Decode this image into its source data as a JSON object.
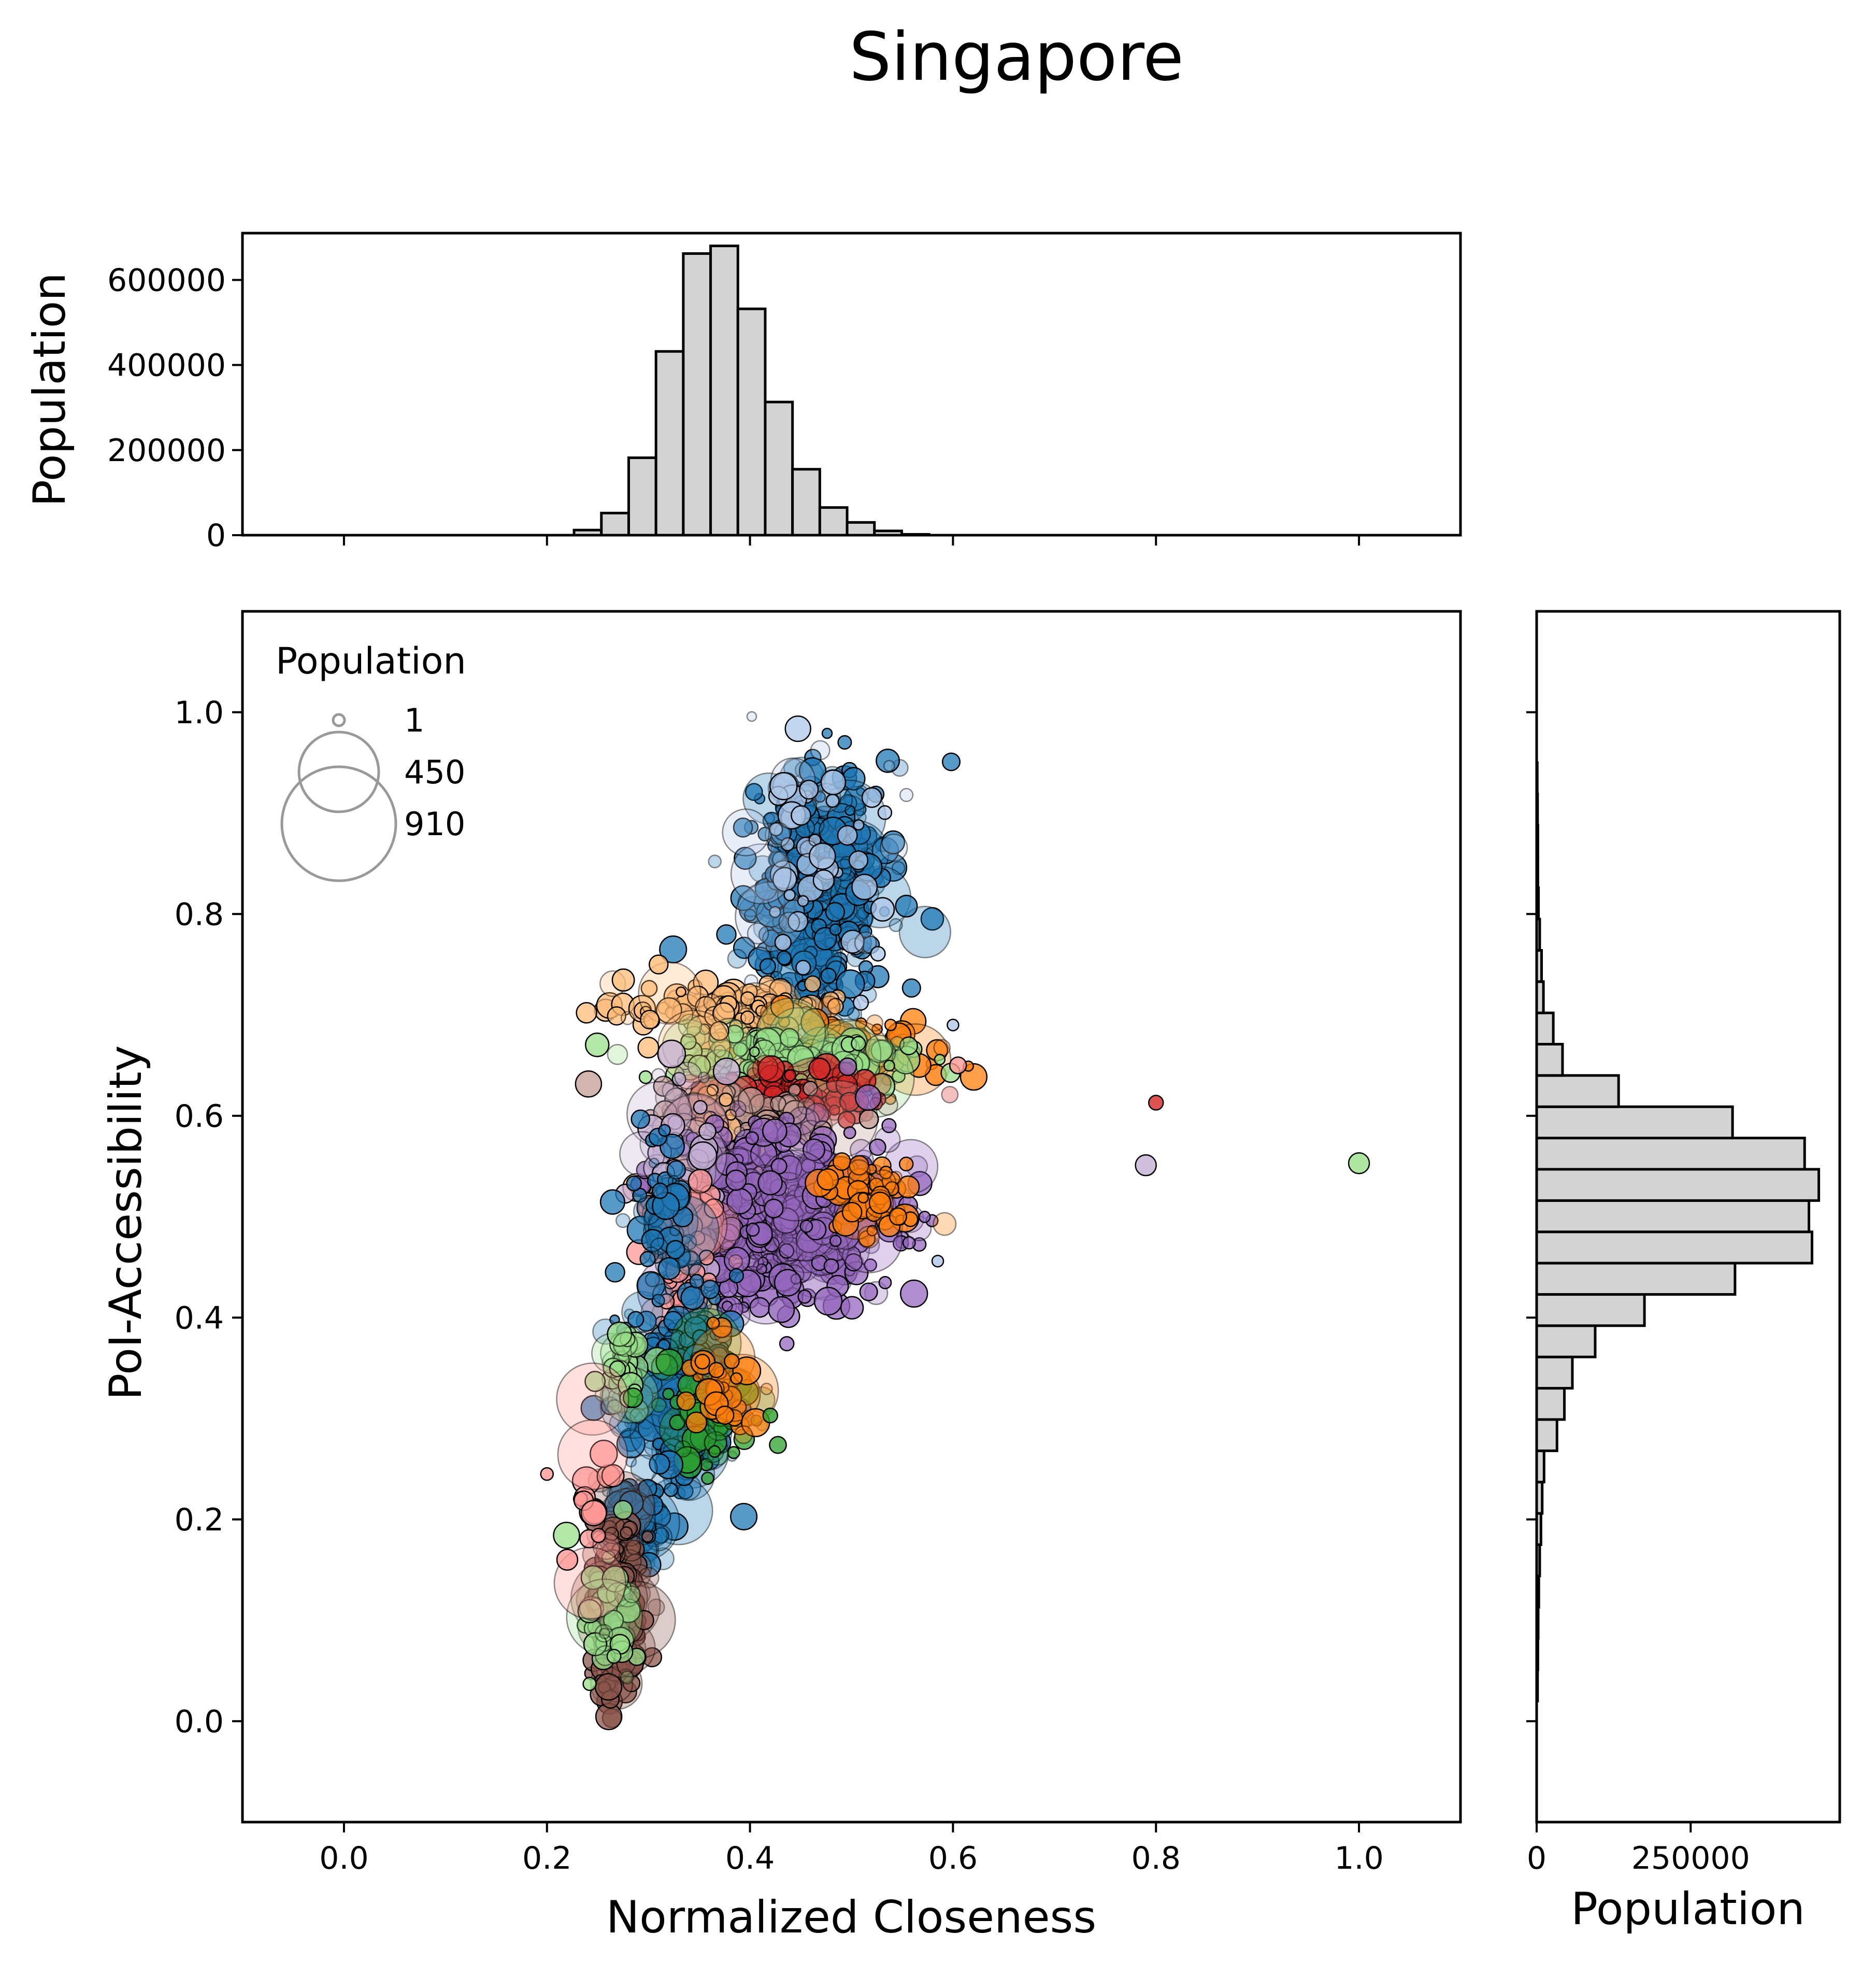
{
  "figure": {
    "title": "Singapore"
  },
  "chart_data": [
    {
      "type": "scatter",
      "name": "main",
      "xlabel": "Normalized Closeness",
      "ylabel": "PoI-Accessibility",
      "xlim": [
        -0.1,
        1.1
      ],
      "ylim": [
        -0.1,
        1.1
      ],
      "xticks": [
        0.0,
        0.2,
        0.4,
        0.6,
        0.8,
        1.0
      ],
      "xtick_labels": [
        "0.0",
        "0.2",
        "0.4",
        "0.6",
        "0.8",
        "1.0"
      ],
      "yticks": [
        0.0,
        0.2,
        0.4,
        0.6,
        0.8,
        1.0
      ],
      "ytick_labels": [
        "0.0",
        "0.2",
        "0.4",
        "0.6",
        "0.8",
        "1.0"
      ],
      "size_legend": {
        "title": "Population",
        "entries": [
          {
            "label": "1",
            "value": 1
          },
          {
            "label": "450",
            "value": 450
          },
          {
            "label": "910",
            "value": 910
          }
        ],
        "placement": "top-left"
      },
      "colors": [
        "#1f77b4",
        "#aec7e8",
        "#ff7f0e",
        "#ffbb78",
        "#2ca02c",
        "#98df8a",
        "#d62728",
        "#ff9896",
        "#9467bd",
        "#c5b0d5",
        "#8c564b",
        "#c49c94"
      ],
      "clusters": [
        {
          "color": "#1f77b4",
          "cx": 0.465,
          "cy": 0.82,
          "sx": 0.035,
          "sy": 0.065,
          "n": 420
        },
        {
          "color": "#aec7e8",
          "cx": 0.46,
          "cy": 0.84,
          "sx": 0.04,
          "sy": 0.07,
          "n": 60
        },
        {
          "color": "#ffbb78",
          "cx": 0.38,
          "cy": 0.705,
          "sx": 0.05,
          "sy": 0.012,
          "n": 140
        },
        {
          "color": "#ff7f0e",
          "cx": 0.49,
          "cy": 0.66,
          "sx": 0.05,
          "sy": 0.02,
          "n": 120
        },
        {
          "color": "#98df8a",
          "cx": 0.43,
          "cy": 0.655,
          "sx": 0.06,
          "sy": 0.012,
          "n": 150
        },
        {
          "color": "#d62728",
          "cx": 0.44,
          "cy": 0.62,
          "sx": 0.05,
          "sy": 0.015,
          "n": 90
        },
        {
          "color": "#c49c94",
          "cx": 0.41,
          "cy": 0.6,
          "sx": 0.05,
          "sy": 0.015,
          "n": 90
        },
        {
          "color": "#ffbb78",
          "cx": 0.36,
          "cy": 0.52,
          "sx": 0.03,
          "sy": 0.06,
          "n": 90
        },
        {
          "color": "#9467bd",
          "cx": 0.43,
          "cy": 0.5,
          "sx": 0.055,
          "sy": 0.045,
          "n": 520
        },
        {
          "color": "#ff7f0e",
          "cx": 0.52,
          "cy": 0.52,
          "sx": 0.025,
          "sy": 0.02,
          "n": 60
        },
        {
          "color": "#c5b0d5",
          "cx": 0.33,
          "cy": 0.56,
          "sx": 0.02,
          "sy": 0.04,
          "n": 40
        },
        {
          "color": "#ff9896",
          "cx": 0.33,
          "cy": 0.47,
          "sx": 0.02,
          "sy": 0.04,
          "n": 50
        },
        {
          "color": "#1f77b4",
          "cx": 0.31,
          "cy": 0.5,
          "sx": 0.015,
          "sy": 0.04,
          "n": 50
        },
        {
          "color": "#1f77b4",
          "cx": 0.33,
          "cy": 0.33,
          "sx": 0.03,
          "sy": 0.05,
          "n": 250
        },
        {
          "color": "#98df8a",
          "cx": 0.28,
          "cy": 0.35,
          "sx": 0.012,
          "sy": 0.02,
          "n": 40
        },
        {
          "color": "#2ca02c",
          "cx": 0.36,
          "cy": 0.3,
          "sx": 0.03,
          "sy": 0.03,
          "n": 50
        },
        {
          "color": "#ff7f0e",
          "cx": 0.375,
          "cy": 0.33,
          "sx": 0.02,
          "sy": 0.03,
          "n": 40
        },
        {
          "color": "#1f77b4",
          "cx": 0.29,
          "cy": 0.2,
          "sx": 0.015,
          "sy": 0.025,
          "n": 80
        },
        {
          "color": "#8c564b",
          "cx": 0.27,
          "cy": 0.11,
          "sx": 0.012,
          "sy": 0.045,
          "n": 200
        },
        {
          "color": "#98df8a",
          "cx": 0.27,
          "cy": 0.1,
          "sx": 0.015,
          "sy": 0.04,
          "n": 40
        },
        {
          "color": "#ff9896",
          "cx": 0.25,
          "cy": 0.22,
          "sx": 0.01,
          "sy": 0.04,
          "n": 20
        }
      ],
      "outliers": [
        {
          "x": 0.8,
          "y": 0.613,
          "color": "#d62728",
          "r": 14
        },
        {
          "x": 0.79,
          "y": 0.551,
          "color": "#c5b0d5",
          "r": 20
        },
        {
          "x": 1.0,
          "y": 0.553,
          "color": "#98df8a",
          "r": 20
        },
        {
          "x": 0.605,
          "y": 0.65,
          "color": "#ff9896",
          "r": 16
        },
        {
          "x": 0.31,
          "y": 0.75,
          "color": "#ffbb78",
          "r": 18
        },
        {
          "x": 0.2,
          "y": 0.245,
          "color": "#ff9896",
          "r": 12
        },
        {
          "x": 0.42,
          "y": 0.303,
          "color": "#2ca02c",
          "r": 14
        },
        {
          "x": 0.585,
          "y": 0.456,
          "color": "#aec7e8",
          "r": 11
        },
        {
          "x": 0.6,
          "y": 0.69,
          "color": "#aec7e8",
          "r": 11
        },
        {
          "x": 0.22,
          "y": 0.16,
          "color": "#ff9896",
          "r": 20
        }
      ]
    },
    {
      "type": "bar",
      "name": "top-histogram",
      "ylabel": "Population",
      "xlim": [
        -0.1,
        1.1
      ],
      "ylim": [
        0,
        710000
      ],
      "yticks": [
        0,
        200000,
        400000,
        600000
      ],
      "ytick_labels": [
        "0",
        "200000",
        "400000",
        "600000"
      ],
      "bin_width": 0.0269,
      "bin_starts": [
        0.2267,
        0.2536,
        0.2805,
        0.3074,
        0.3343,
        0.3612,
        0.3881,
        0.415,
        0.4419,
        0.4688,
        0.4957,
        0.5226,
        0.5495
      ],
      "values": [
        12000,
        52000,
        182000,
        432000,
        662000,
        680000,
        532000,
        313000,
        155000,
        65000,
        30000,
        10000,
        2000
      ]
    },
    {
      "type": "bar",
      "name": "right-histogram",
      "orientation": "horizontal",
      "xlabel": "Population",
      "xlim": [
        0,
        492000
      ],
      "xticks": [
        0,
        250000
      ],
      "xtick_labels": [
        "0",
        "250000"
      ],
      "bin_height": 0.031,
      "bin_starts": [
        0.02,
        0.051,
        0.082,
        0.113,
        0.144,
        0.175,
        0.206,
        0.237,
        0.268,
        0.299,
        0.33,
        0.361,
        0.392,
        0.423,
        0.454,
        0.485,
        0.516,
        0.547,
        0.578,
        0.609,
        0.64,
        0.671,
        0.702,
        0.733,
        0.764,
        0.795,
        0.826,
        0.857,
        0.888,
        0.919
      ],
      "values": [
        1500,
        2000,
        2500,
        3500,
        5000,
        7000,
        9000,
        12000,
        33000,
        45000,
        58000,
        95000,
        175000,
        322000,
        447000,
        442000,
        458000,
        435000,
        318000,
        133000,
        42000,
        27000,
        11000,
        8000,
        5000,
        3000,
        2000,
        2000,
        1500,
        1000
      ]
    }
  ]
}
